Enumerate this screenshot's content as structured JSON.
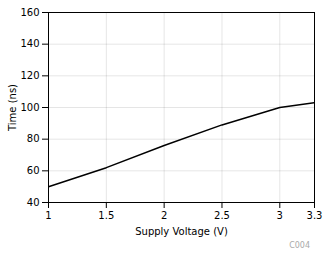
{
  "chart_data": {
    "type": "line",
    "xlabel": "Supply Voltage (V)",
    "ylabel": "Time (ns)",
    "x": [
      1.0,
      1.5,
      2.0,
      2.5,
      3.0,
      3.3
    ],
    "values": [
      50,
      62,
      76,
      89,
      100,
      103
    ],
    "color": "#000000",
    "xlim": [
      1,
      3.3
    ],
    "ylim": [
      40,
      160
    ],
    "xticks": [
      1,
      1.5,
      2,
      2.5,
      3,
      3.3
    ],
    "yticks": [
      40,
      60,
      80,
      100,
      120,
      140,
      160
    ],
    "grid": true,
    "annotation": "C004"
  }
}
